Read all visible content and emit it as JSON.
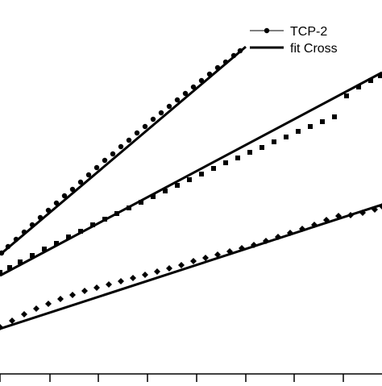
{
  "chart_data": {
    "type": "scatter",
    "title": "",
    "xlabel": "",
    "ylabel": "",
    "xlim": [
      0,
      474
    ],
    "ylim": [
      0,
      474
    ],
    "grid": false,
    "legend": {
      "placement": "top-right",
      "entries": [
        {
          "label": "TCP-2",
          "style": "line-with-circle-marker"
        },
        {
          "label": "fit Cross",
          "style": "thick-line"
        }
      ]
    },
    "x_tick_positions": [
      0,
      62,
      122,
      183,
      244,
      305,
      365,
      426
    ],
    "series": [
      {
        "marker": "circle",
        "points": [
          [
            2,
            160
          ],
          [
            10,
            168
          ],
          [
            20,
            177
          ],
          [
            30,
            186
          ],
          [
            40,
            195
          ],
          [
            50,
            204
          ],
          [
            60,
            213
          ],
          [
            70,
            222
          ],
          [
            80,
            231
          ],
          [
            90,
            239
          ],
          [
            100,
            248
          ],
          [
            110,
            257
          ],
          [
            120,
            266
          ],
          [
            130,
            275
          ],
          [
            140,
            283
          ],
          [
            150,
            292
          ],
          [
            160,
            300
          ],
          [
            170,
            309
          ],
          [
            180,
            317
          ],
          [
            190,
            326
          ],
          [
            200,
            334
          ],
          [
            210,
            342
          ],
          [
            220,
            350
          ],
          [
            230,
            358
          ],
          [
            240,
            366
          ],
          [
            250,
            374
          ],
          [
            260,
            382
          ],
          [
            270,
            390
          ],
          [
            280,
            397
          ],
          [
            290,
            405
          ],
          [
            298,
            411
          ]
        ],
        "fit": [
          [
            0,
            158
          ],
          [
            305,
            416
          ]
        ]
      },
      {
        "marker": "square",
        "points": [
          [
            0,
            136
          ],
          [
            12,
            142
          ],
          [
            25,
            149
          ],
          [
            40,
            157
          ],
          [
            55,
            165
          ],
          [
            70,
            172
          ],
          [
            85,
            180
          ],
          [
            100,
            187
          ],
          [
            115,
            195
          ],
          [
            130,
            202
          ],
          [
            145,
            209
          ],
          [
            160,
            216
          ],
          [
            175,
            223
          ],
          [
            190,
            230
          ],
          [
            205,
            237
          ],
          [
            220,
            244
          ],
          [
            235,
            251
          ],
          [
            250,
            258
          ],
          [
            265,
            265
          ],
          [
            280,
            272
          ],
          [
            295,
            278
          ],
          [
            310,
            285
          ],
          [
            325,
            291
          ],
          [
            340,
            298
          ],
          [
            355,
            304
          ],
          [
            370,
            311
          ],
          [
            385,
            317
          ],
          [
            400,
            323
          ],
          [
            415,
            329
          ],
          [
            430,
            355
          ],
          [
            445,
            366
          ],
          [
            460,
            374
          ],
          [
            472,
            380
          ]
        ],
        "fit": [
          [
            0,
            132
          ],
          [
            474,
            384
          ]
        ]
      },
      {
        "marker": "diamond",
        "points": [
          [
            0,
            68
          ],
          [
            15,
            76
          ],
          [
            30,
            84
          ],
          [
            45,
            91
          ],
          [
            60,
            97
          ],
          [
            75,
            103
          ],
          [
            90,
            108
          ],
          [
            105,
            113
          ],
          [
            120,
            117
          ],
          [
            135,
            121
          ],
          [
            150,
            125
          ],
          [
            165,
            129
          ],
          [
            180,
            133
          ],
          [
            195,
            137
          ],
          [
            210,
            141
          ],
          [
            225,
            145
          ],
          [
            240,
            150
          ],
          [
            255,
            154
          ],
          [
            270,
            158
          ],
          [
            285,
            162
          ],
          [
            300,
            166
          ],
          [
            315,
            170
          ],
          [
            330,
            175
          ],
          [
            345,
            180
          ],
          [
            360,
            185
          ],
          [
            375,
            190
          ],
          [
            390,
            195
          ],
          [
            405,
            201
          ],
          [
            420,
            206
          ],
          [
            435,
            207
          ],
          [
            450,
            210
          ],
          [
            465,
            214
          ],
          [
            474,
            218
          ]
        ],
        "fit": [
          [
            0,
            66
          ],
          [
            474,
            220
          ]
        ]
      }
    ]
  }
}
